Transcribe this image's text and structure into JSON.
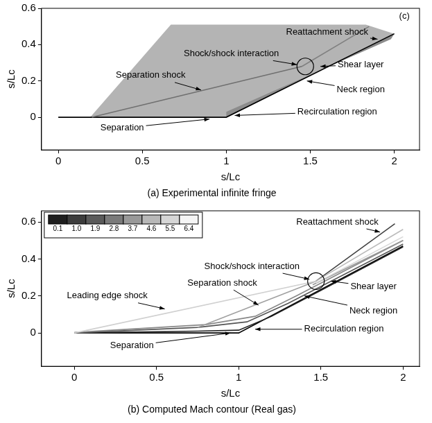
{
  "chart_data": [
    {
      "type": "line",
      "title": "(a) Experimental infinite fringe",
      "x_label": "s/Lc",
      "y_label": "s/Lc",
      "xlim": [
        -0.1,
        2.15
      ],
      "xticks": [
        0,
        0.5,
        1,
        1.5,
        2
      ],
      "ylim": [
        -0.18,
        0.6
      ],
      "yticks": [
        0,
        0.2,
        0.4,
        0.6
      ],
      "grid": false,
      "series": [
        {
          "type": "area",
          "color": "#b4b4b4",
          "x": [
            0.19,
            0.67,
            1.83,
            2.0,
            1.0,
            0.19
          ],
          "values": [
            0,
            0.51,
            0.51,
            0.46,
            0,
            0
          ]
        },
        {
          "type": "area",
          "color": "#8c8c8c",
          "x": [
            1.0,
            2.0,
            1.98,
            1.0
          ],
          "values": [
            0,
            0.46,
            0.43,
            0.03
          ]
        },
        {
          "type": "line",
          "name": "Separation shock",
          "color": "#707070",
          "x": [
            0.2,
            1.45
          ],
          "values": [
            0,
            0.28
          ]
        },
        {
          "type": "line",
          "name": "Reattachment shock",
          "color": "#808080",
          "x": [
            1.45,
            1.85
          ],
          "values": [
            0.28,
            0.5
          ]
        },
        {
          "type": "line",
          "color": "#000000",
          "x": [
            0,
            1,
            2
          ],
          "values": [
            0,
            0,
            0.46
          ]
        }
      ],
      "circles": [
        {
          "x": 1.47,
          "y": 0.28
        }
      ],
      "annotations": [
        {
          "text": "(c)",
          "x": 2.06,
          "y": 0.555
        },
        {
          "text": "Reattachment shock",
          "x": 1.6,
          "y": 0.47,
          "arrow_x": 1.9,
          "arrow_y": 0.43
        },
        {
          "text": "Shock/shock interaction",
          "x": 1.03,
          "y": 0.35,
          "arrow_x": 1.42,
          "arrow_y": 0.29
        },
        {
          "text": "Shear layer",
          "x": 1.8,
          "y": 0.29,
          "arrow_x": 1.56,
          "arrow_y": 0.28
        },
        {
          "text": "Separation shock",
          "x": 0.55,
          "y": 0.23,
          "arrow_x": 0.85,
          "arrow_y": 0.15
        },
        {
          "text": "Neck region",
          "x": 1.8,
          "y": 0.15,
          "arrow_x": 1.48,
          "arrow_y": 0.2
        },
        {
          "text": "Recirculation region",
          "x": 1.66,
          "y": 0.03,
          "arrow_x": 1.05,
          "arrow_y": 0.01
        },
        {
          "text": "Separation",
          "x": 0.38,
          "y": -0.06,
          "arrow_x": 0.9,
          "arrow_y": -0.01
        }
      ]
    },
    {
      "type": "line",
      "title": "(b) Computed Mach contour (Real gas)",
      "x_label": "s/Lc",
      "y_label": "s/Lc",
      "xlim": [
        -0.2,
        2.1
      ],
      "xticks": [
        0,
        0.5,
        1,
        1.5,
        2
      ],
      "ylim": [
        -0.18,
        0.66
      ],
      "yticks": [
        0,
        0.2,
        0.4,
        0.6
      ],
      "grid": false,
      "series": [
        {
          "type": "line",
          "name": "Leading edge shock",
          "color": "#d0d0d0",
          "x": [
            0,
            1.47
          ],
          "values": [
            0,
            0.28
          ]
        },
        {
          "type": "line",
          "name": "Separation shock",
          "color": "#a0a0a0",
          "x": [
            0.75,
            1.47
          ],
          "values": [
            0.03,
            0.28
          ]
        },
        {
          "type": "line",
          "color": "#bbbbbb",
          "x": [
            1.47,
            2.0
          ],
          "values": [
            0.28,
            0.56
          ]
        },
        {
          "type": "line",
          "color": "#d8d8d8",
          "x": [
            1.47,
            2.0
          ],
          "values": [
            0.27,
            0.52
          ]
        },
        {
          "type": "line",
          "color": "#999999",
          "x": [
            1.45,
            2.0
          ],
          "values": [
            0.26,
            0.5
          ]
        },
        {
          "type": "line",
          "color": "#888888",
          "x": [
            0,
            0.8,
            1.1,
            1.35,
            2.0
          ],
          "values": [
            0.003,
            0.045,
            0.09,
            0.2,
            0.5
          ]
        },
        {
          "type": "line",
          "color": "#555555",
          "x": [
            0,
            0.75,
            1.05,
            1.3,
            2.0
          ],
          "values": [
            0,
            0.03,
            0.06,
            0.16,
            0.48
          ]
        },
        {
          "type": "line",
          "color": "#222222",
          "x": [
            0,
            0.75,
            1.0,
            1.2,
            1.5,
            2.0
          ],
          "values": [
            0,
            0.01,
            0.015,
            0.09,
            0.23,
            0.465
          ]
        },
        {
          "type": "line",
          "name": "Reattachment shock",
          "color": "#404040",
          "x": [
            1.47,
            1.95
          ],
          "values": [
            0.28,
            0.59
          ]
        },
        {
          "type": "line",
          "color": "#000000",
          "x": [
            0,
            1,
            2
          ],
          "values": [
            0,
            0,
            0.47
          ]
        }
      ],
      "circles": [
        {
          "x": 1.47,
          "y": 0.28
        }
      ],
      "colorbar": {
        "range": [
          0.1,
          6.4
        ],
        "ticks": [
          0.1,
          {
            "value": 1,
            "label": "1.0"
          },
          1.9,
          2.8,
          3.7,
          4.6,
          5.5,
          6.4
        ]
      },
      "annotations": [
        {
          "text": "Reattachment shock",
          "x": 1.6,
          "y": 0.6,
          "arrow_x": 1.86,
          "arrow_y": 0.545
        },
        {
          "text": "Shock/shock interaction",
          "x": 1.08,
          "y": 0.36,
          "arrow_x": 1.43,
          "arrow_y": 0.29
        },
        {
          "text": "Shear layer",
          "x": 1.82,
          "y": 0.25,
          "arrow_x": 1.56,
          "arrow_y": 0.28
        },
        {
          "text": "Separation shock",
          "x": 0.9,
          "y": 0.27,
          "arrow_x": 1.12,
          "arrow_y": 0.15
        },
        {
          "text": "Leading edge shock",
          "x": 0.2,
          "y": 0.2,
          "arrow_x": 0.55,
          "arrow_y": 0.13
        },
        {
          "text": "Neck region",
          "x": 1.82,
          "y": 0.12,
          "arrow_x": 1.4,
          "arrow_y": 0.2
        },
        {
          "text": "Recirculation region",
          "x": 1.64,
          "y": 0.02,
          "arrow_x": 1.1,
          "arrow_y": 0.02
        },
        {
          "text": "Separation",
          "x": 0.35,
          "y": -0.07,
          "arrow_x": 0.95,
          "arrow_y": 0.0
        }
      ]
    }
  ]
}
